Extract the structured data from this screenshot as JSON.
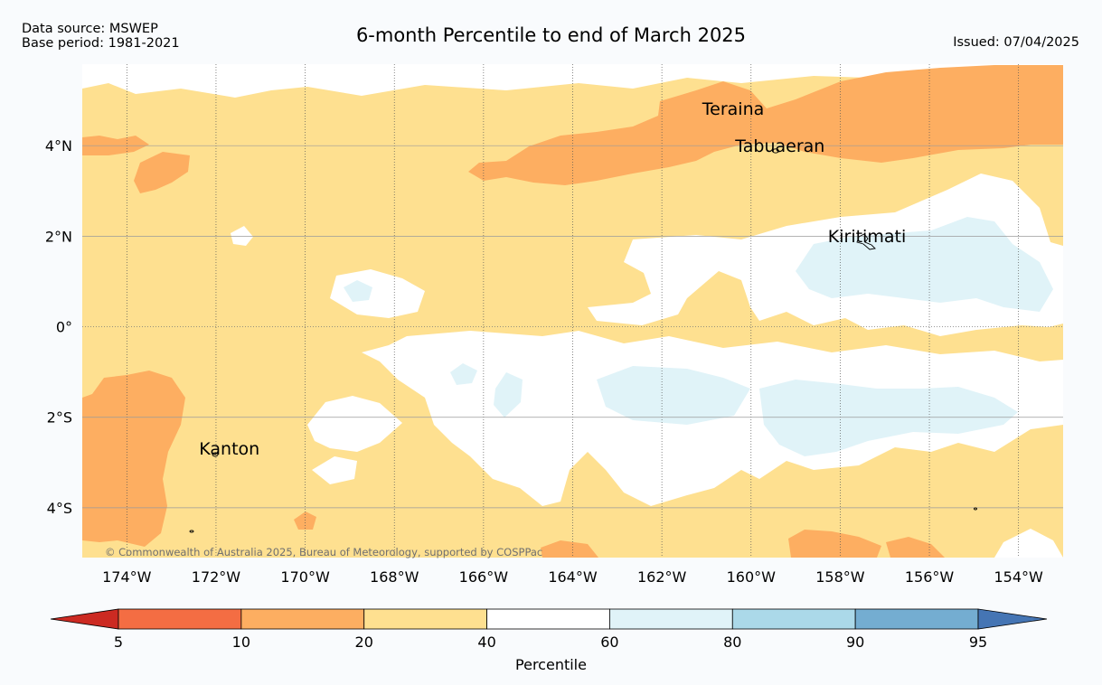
{
  "header": {
    "title": "6-month Percentile to end of March 2025",
    "data_source": "Data source: MSWEP",
    "base_period": "Base period: 1981-2021",
    "issued": "Issued: 07/04/2025"
  },
  "map": {
    "lon_range": [
      -175,
      -153
    ],
    "lat_range": [
      -5.1,
      5.8
    ],
    "lon_ticks": [
      {
        "value": -174,
        "label": "174°W"
      },
      {
        "value": -172,
        "label": "172°W"
      },
      {
        "value": -170,
        "label": "170°W"
      },
      {
        "value": -168,
        "label": "168°W"
      },
      {
        "value": -166,
        "label": "166°W"
      },
      {
        "value": -164,
        "label": "164°W"
      },
      {
        "value": -162,
        "label": "162°W"
      },
      {
        "value": -160,
        "label": "160°W"
      },
      {
        "value": -158,
        "label": "158°W"
      },
      {
        "value": -156,
        "label": "156°W"
      },
      {
        "value": -154,
        "label": "154°W"
      }
    ],
    "lat_ticks": [
      {
        "value": 4,
        "label": "4°N"
      },
      {
        "value": 2,
        "label": "2°N"
      },
      {
        "value": 0,
        "label": "0°"
      },
      {
        "value": -2,
        "label": "2°S"
      },
      {
        "value": -4,
        "label": "4°S"
      }
    ],
    "places": [
      {
        "name": "Teraina",
        "lon": -160.4,
        "lat": 4.68
      },
      {
        "name": "Tabuaeran",
        "lon": -159.35,
        "lat": 3.86
      },
      {
        "name": "Kiritimati",
        "lon": -157.4,
        "lat": 1.87
      },
      {
        "name": "Kanton",
        "lon": -171.7,
        "lat": -2.82
      }
    ],
    "copyright": "© Commonwealth of Australia 2025, Bureau of Meteorology, supported by COSPPac"
  },
  "colorbar": {
    "label": "Percentile",
    "boundaries": [
      "5",
      "10",
      "20",
      "40",
      "60",
      "80",
      "90",
      "95"
    ],
    "colors": [
      "#cc2a22",
      "#f46d43",
      "#fdae61",
      "#fee090",
      "#ffffff",
      "#e0f3f8",
      "#abd9e9",
      "#74add1",
      "#4575b4"
    ]
  }
}
